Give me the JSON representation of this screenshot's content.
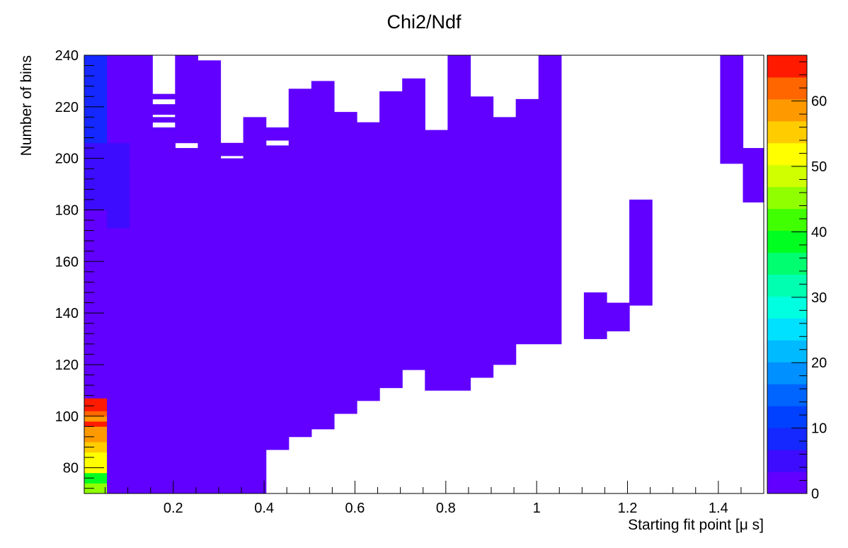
{
  "chart_data": {
    "type": "heatmap",
    "title": "Chi2/Ndf",
    "xlabel": "Starting fit point [μ s]",
    "ylabel": "Number of bins",
    "xlim": [
      0.004,
      1.5
    ],
    "ylim": [
      70,
      240
    ],
    "x_ticks": [
      "0.2",
      "0.4",
      "0.6",
      "0.8",
      "1",
      "1.2",
      "1.4"
    ],
    "y_ticks": [
      "80",
      "100",
      "120",
      "140",
      "160",
      "180",
      "200",
      "220",
      "240"
    ],
    "colorbar_ticks": [
      "0",
      "10",
      "20",
      "30",
      "40",
      "50",
      "60"
    ],
    "colorbar_range": [
      0,
      67
    ],
    "grid": false,
    "x_bin_edges": [
      0.004,
      0.054,
      0.104,
      0.154,
      0.204,
      0.254,
      0.304,
      0.354,
      0.404,
      0.454,
      0.504,
      0.554,
      0.604,
      0.654,
      0.704,
      0.754,
      0.804,
      0.854,
      0.904,
      0.954,
      1.004,
      1.054,
      1.104,
      1.154,
      1.204,
      1.254,
      1.304,
      1.354,
      1.404,
      1.454,
      1.5
    ],
    "cells": [
      [
        0,
        70,
        74,
        45
      ],
      [
        0,
        74,
        78,
        40
      ],
      [
        0,
        78,
        82,
        51
      ],
      [
        0,
        82,
        86,
        53
      ],
      [
        0,
        86,
        90,
        56
      ],
      [
        0,
        90,
        94,
        58
      ],
      [
        0,
        94,
        96,
        60
      ],
      [
        0,
        96,
        98,
        64
      ],
      [
        0,
        98,
        100,
        60
      ],
      [
        0,
        100,
        102,
        62
      ],
      [
        0,
        102,
        104,
        64
      ],
      [
        0,
        104,
        106,
        66
      ],
      [
        0,
        106,
        107,
        67
      ],
      [
        0,
        107,
        180,
        1
      ],
      [
        0,
        180,
        206,
        6
      ],
      [
        0,
        206,
        240,
        9
      ],
      [
        1,
        70,
        107,
        1
      ],
      [
        1,
        107,
        173,
        1
      ],
      [
        1,
        173,
        180,
        4
      ],
      [
        1,
        180,
        206,
        5
      ],
      [
        1,
        206,
        240,
        1
      ],
      [
        2,
        70,
        97,
        1
      ],
      [
        2,
        97,
        199,
        1
      ],
      [
        2,
        199,
        240,
        1
      ],
      [
        3,
        70,
        212,
        1
      ],
      [
        3,
        214,
        216,
        1
      ],
      [
        3,
        217,
        221,
        1
      ],
      [
        3,
        223,
        225,
        1
      ],
      [
        4,
        70,
        204,
        1
      ],
      [
        4,
        206,
        240,
        1
      ],
      [
        5,
        70,
        238,
        1
      ],
      [
        6,
        70,
        200,
        1
      ],
      [
        6,
        201,
        206,
        1
      ],
      [
        7,
        70,
        87,
        1
      ],
      [
        7,
        87,
        216,
        1
      ],
      [
        8,
        87,
        205,
        1
      ],
      [
        8,
        207,
        212,
        1
      ],
      [
        9,
        92,
        227,
        1
      ],
      [
        10,
        95,
        230,
        1
      ],
      [
        11,
        101,
        218,
        1
      ],
      [
        12,
        106,
        214,
        1
      ],
      [
        13,
        111,
        226,
        1
      ],
      [
        14,
        118,
        231,
        1
      ],
      [
        15,
        110,
        211,
        1
      ],
      [
        16,
        110,
        240,
        1
      ],
      [
        17,
        115,
        224,
        1
      ],
      [
        18,
        120,
        216,
        1
      ],
      [
        19,
        128,
        223,
        1
      ],
      [
        20,
        128,
        240,
        1
      ],
      [
        22,
        130,
        148,
        1
      ],
      [
        23,
        133,
        144,
        1
      ],
      [
        24,
        143,
        184,
        1
      ],
      [
        28,
        198,
        240,
        1
      ],
      [
        29,
        183,
        204,
        1
      ]
    ]
  }
}
